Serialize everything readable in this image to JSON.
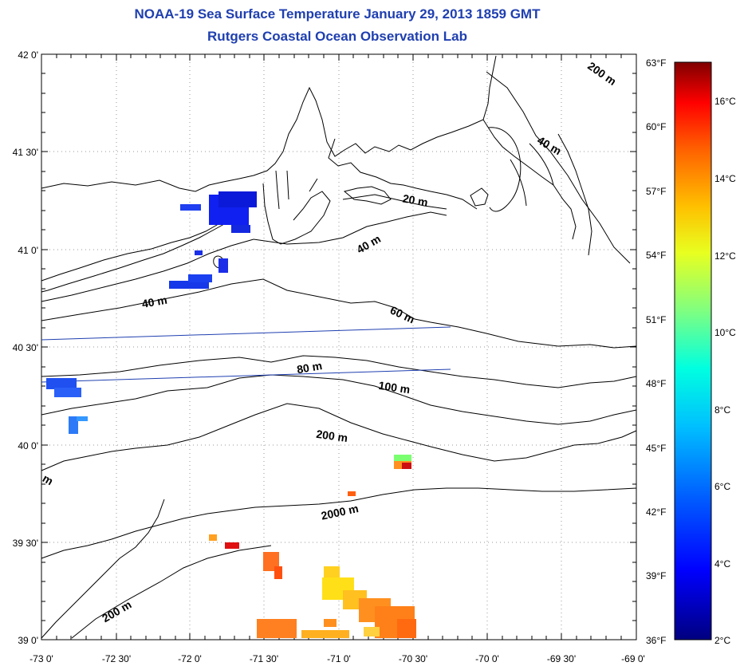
{
  "header": {
    "title": "NOAA-19 Sea Surface Temperature January 29, 2013 1859 GMT",
    "subtitle": "Rutgers Coastal Ocean Observation Lab"
  },
  "map": {
    "lon_ticks": [
      "-73 0'",
      "-72 30'",
      "-72 0'",
      "-71 30'",
      "-71 0'",
      "-70 30'",
      "-70 0'",
      "-69 30'",
      "-69 0'"
    ],
    "lat_ticks": [
      "42 0'",
      "41 30'",
      "41 0'",
      "40 30'",
      "40 0'",
      "39 30'",
      "39 0'"
    ],
    "fahrenheit_ticks": [
      "63°F",
      "60°F",
      "57°F",
      "54°F",
      "51°F",
      "48°F",
      "45°F",
      "42°F",
      "39°F",
      "36°F"
    ],
    "isobath_labels": {
      "l200_top": "200 m",
      "l40_ne": "40 m",
      "l20": "20 m",
      "l40_mid": "40 m",
      "l40_west": "40 m",
      "l60": "60 m",
      "l80": "80 m",
      "l100": "100 m",
      "l200_mid": "200 m",
      "l2000": "2000 m",
      "l200_sw": "200 m",
      "lm_edge": "m"
    }
  },
  "colorbar": {
    "celsius_ticks": [
      "16°C",
      "14°C",
      "12°C",
      "10°C",
      "8°C",
      "6°C",
      "4°C",
      "2°C"
    ],
    "colors": [
      "#800000",
      "#ff0000",
      "#ff8000",
      "#ffff00",
      "#80ff80",
      "#00ffff",
      "#0080ff",
      "#0000ff",
      "#000080"
    ]
  }
}
